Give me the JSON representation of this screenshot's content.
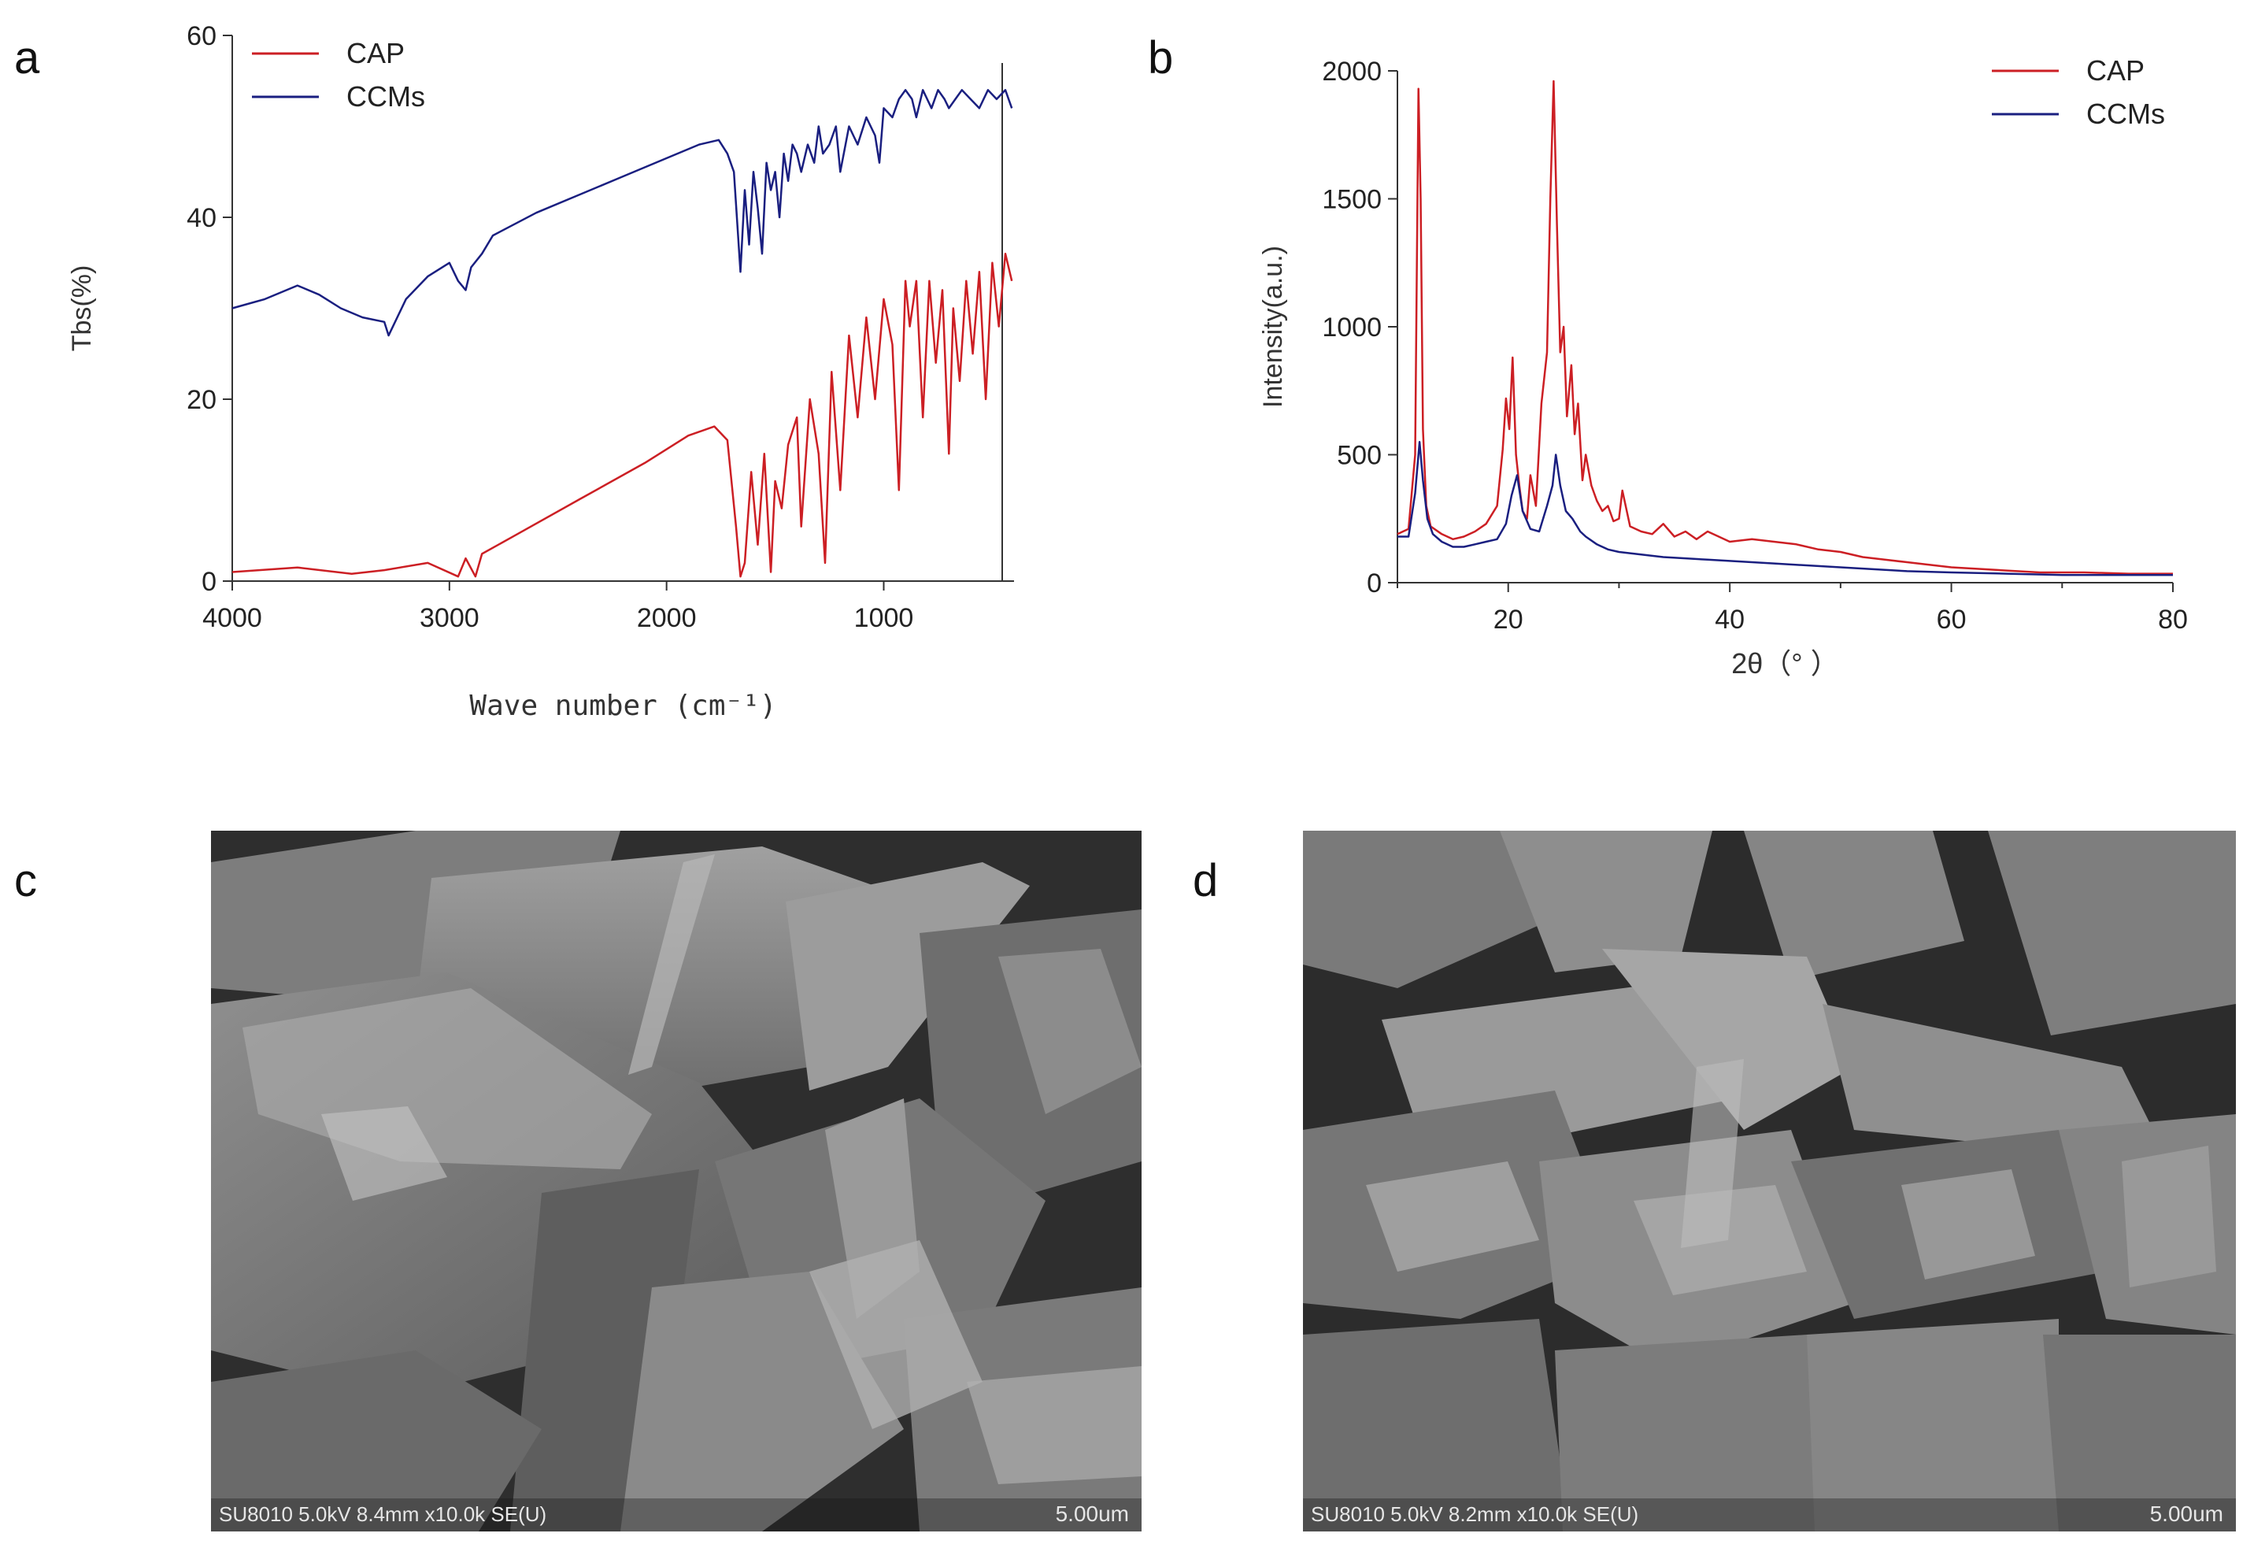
{
  "panels": {
    "a": {
      "letter": "a"
    },
    "b": {
      "letter": "b"
    },
    "c": {
      "letter": "c",
      "info": "SU8010 5.0kV 8.4mm x10.0k SE(U)",
      "scale": "5.00um"
    },
    "d": {
      "letter": "d",
      "info": "SU8010 5.0kV 8.2mm x10.0k SE(U)",
      "scale": "5.00um"
    }
  },
  "colors": {
    "cap": "#cc1f24",
    "ccms": "#1a1f80",
    "axis": "#333333"
  },
  "chart_data": [
    {
      "type": "line",
      "panel": "a",
      "xlabel": "Wave number (cm⁻¹)",
      "ylabel": "Tbs(%)",
      "xlim": [
        4000,
        400
      ],
      "ylim": [
        0,
        60
      ],
      "x_reversed": true,
      "xticks": [
        4000,
        3000,
        2000,
        1000
      ],
      "yticks": [
        0,
        20,
        40,
        60
      ],
      "legend_position": "top-left",
      "series": [
        {
          "name": "CAP",
          "color": "#cc1f24",
          "x": [
            4000,
            3700,
            3450,
            3300,
            3100,
            2960,
            2925,
            2880,
            2850,
            2700,
            2400,
            2100,
            1900,
            1780,
            1720,
            1680,
            1660,
            1640,
            1610,
            1580,
            1550,
            1520,
            1500,
            1470,
            1440,
            1400,
            1380,
            1340,
            1300,
            1270,
            1240,
            1200,
            1160,
            1120,
            1080,
            1040,
            1000,
            960,
            930,
            900,
            880,
            850,
            820,
            790,
            760,
            730,
            700,
            680,
            650,
            620,
            590,
            560,
            530,
            500,
            470,
            440,
            410
          ],
          "y": [
            1,
            1.5,
            0.8,
            1.2,
            2,
            0.5,
            2.5,
            0.5,
            3,
            5,
            9,
            13,
            16,
            17,
            15.5,
            6,
            0.5,
            2,
            12,
            4,
            14,
            1,
            11,
            8,
            15,
            18,
            6,
            20,
            14,
            2,
            23,
            10,
            27,
            18,
            29,
            20,
            31,
            26,
            10,
            33,
            28,
            33,
            18,
            33,
            24,
            32,
            14,
            30,
            22,
            33,
            25,
            34,
            20,
            35,
            28,
            36,
            33
          ]
        },
        {
          "name": "CCMs",
          "color": "#1a1f80",
          "x": [
            4000,
            3850,
            3700,
            3600,
            3500,
            3400,
            3300,
            3280,
            3200,
            3100,
            3000,
            2960,
            2925,
            2900,
            2850,
            2800,
            2600,
            2400,
            2200,
            2000,
            1850,
            1760,
            1720,
            1690,
            1660,
            1640,
            1620,
            1600,
            1580,
            1560,
            1540,
            1520,
            1500,
            1480,
            1460,
            1440,
            1420,
            1400,
            1380,
            1350,
            1320,
            1300,
            1280,
            1250,
            1220,
            1200,
            1160,
            1120,
            1080,
            1040,
            1020,
            1000,
            960,
            930,
            900,
            870,
            850,
            820,
            800,
            780,
            750,
            720,
            700,
            670,
            640,
            600,
            560,
            520,
            480,
            440,
            410
          ],
          "y": [
            30,
            31,
            32.5,
            31.5,
            30,
            29,
            28.5,
            27,
            31,
            33.5,
            35,
            33,
            32,
            34.5,
            36,
            38,
            40.5,
            42.5,
            44.5,
            46.5,
            48,
            48.5,
            47,
            45,
            34,
            43,
            37,
            45,
            41,
            36,
            46,
            43,
            45,
            40,
            47,
            44,
            48,
            47,
            45,
            48,
            46,
            50,
            47,
            48,
            50,
            45,
            50,
            48,
            51,
            49,
            46,
            52,
            51,
            53,
            54,
            53,
            51,
            54,
            53,
            52,
            54,
            53,
            52,
            53,
            54,
            53,
            52,
            54,
            53,
            54,
            52
          ]
        }
      ]
    },
    {
      "type": "line",
      "panel": "b",
      "xlabel": "2θ（° ）",
      "ylabel": "Intensity(a.u.)",
      "xlim": [
        10,
        80
      ],
      "ylim": [
        0,
        2000
      ],
      "xticks": [
        20,
        40,
        60,
        80
      ],
      "yticks": [
        0,
        500,
        1000,
        1500,
        2000
      ],
      "legend_position": "top-right",
      "series": [
        {
          "name": "CAP",
          "color": "#cc1f24",
          "x": [
            10,
            11,
            11.6,
            11.9,
            12.1,
            12.3,
            12.6,
            13,
            14,
            15,
            16,
            17,
            18,
            19,
            19.5,
            19.8,
            20.1,
            20.4,
            20.7,
            21,
            21.3,
            21.7,
            22,
            22.5,
            23,
            23.5,
            23.8,
            24.1,
            24.4,
            24.7,
            25,
            25.3,
            25.7,
            26,
            26.3,
            26.7,
            27,
            27.5,
            28,
            28.5,
            29,
            29.5,
            30,
            30.3,
            31,
            32,
            33,
            34,
            35,
            36,
            37,
            38,
            39,
            40,
            42,
            44,
            46,
            48,
            50,
            52,
            54,
            56,
            58,
            60,
            64,
            68,
            72,
            76,
            80
          ],
          "y": [
            190,
            210,
            500,
            1930,
            1500,
            600,
            300,
            220,
            190,
            170,
            180,
            200,
            230,
            300,
            520,
            720,
            600,
            880,
            500,
            380,
            280,
            250,
            420,
            300,
            700,
            900,
            1500,
            1960,
            1400,
            900,
            1000,
            650,
            850,
            580,
            700,
            400,
            500,
            380,
            320,
            280,
            300,
            240,
            250,
            360,
            220,
            200,
            190,
            230,
            180,
            200,
            170,
            200,
            180,
            160,
            170,
            160,
            150,
            130,
            120,
            100,
            90,
            80,
            70,
            60,
            50,
            40,
            40,
            35,
            35
          ]
        },
        {
          "name": "CCMs",
          "color": "#1a1f80",
          "x": [
            10,
            11,
            11.6,
            12,
            12.3,
            12.7,
            13.2,
            14,
            15,
            16,
            17,
            18,
            19,
            19.8,
            20.3,
            20.8,
            21.3,
            22,
            22.8,
            23.5,
            24,
            24.3,
            24.7,
            25.2,
            25.8,
            26.5,
            27,
            28,
            29,
            30,
            32,
            34,
            36,
            38,
            40,
            44,
            48,
            52,
            56,
            60,
            65,
            70,
            75,
            80
          ],
          "y": [
            180,
            180,
            350,
            550,
            400,
            250,
            190,
            160,
            140,
            140,
            150,
            160,
            170,
            230,
            340,
            420,
            280,
            210,
            200,
            300,
            380,
            500,
            380,
            280,
            250,
            200,
            180,
            150,
            130,
            120,
            110,
            100,
            95,
            90,
            85,
            75,
            65,
            55,
            45,
            40,
            35,
            30,
            30,
            30
          ]
        }
      ]
    }
  ]
}
